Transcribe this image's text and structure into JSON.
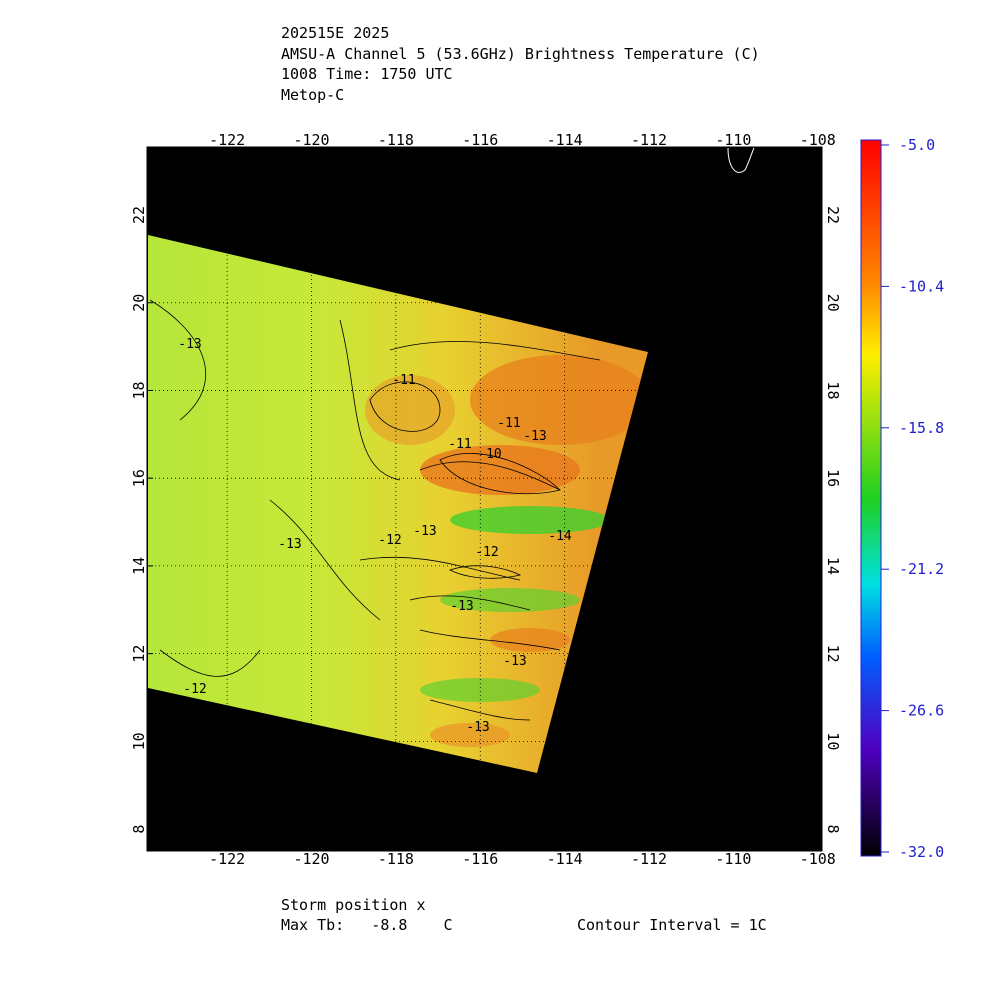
{
  "header": {
    "lines": [
      "202515E 2025",
      "AMSU-A Channel 5 (53.6GHz) Brightness Temperature (C)",
      "1008 Time: 1750 UTC",
      "Metop-C"
    ]
  },
  "map": {
    "xlim": [
      -123.9,
      -107.9
    ],
    "ylim": [
      7.5,
      23.55
    ],
    "xticks": [
      -122,
      -120,
      -118,
      -116,
      -114,
      -112,
      -110,
      -108
    ],
    "yticks": [
      8,
      10,
      12,
      14,
      16,
      18,
      20,
      22
    ],
    "contour_labels": [
      "-13",
      "-11",
      "-11",
      "-10",
      "-11",
      "-13",
      "-12",
      "-13",
      "-13",
      "-12",
      "-13",
      "-14",
      "-13",
      "-12",
      "-13"
    ]
  },
  "colorbar": {
    "lim": [
      -32,
      -5
    ],
    "ticks": [
      {
        "value": -5,
        "label": "-5.0"
      },
      -10.4,
      -15.8,
      -21.2,
      -26.6,
      {
        "value": -32,
        "label": "-32.0"
      }
    ]
  },
  "footer": {
    "storm": "Storm position x",
    "max_tb": "Max Tb:   -8.8    C",
    "interval": "Contour Interval = 1C"
  }
}
